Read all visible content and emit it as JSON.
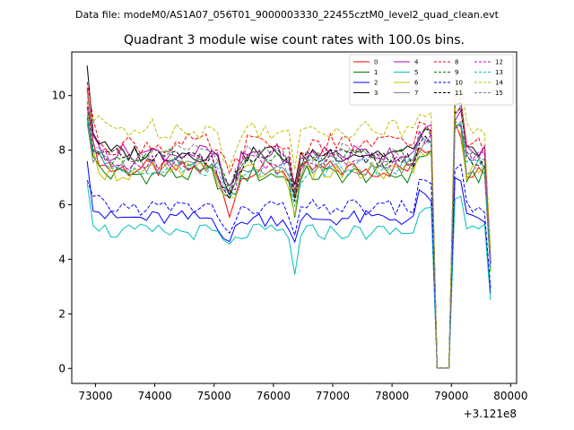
{
  "figure": {
    "suptitle": "Data file: modeM0/AS1A07_056T01_9000003330_22455cztM0_level2_quad_clean.evt",
    "title": "Quadrant 3 module wise count rates with 100.0s bins.",
    "x_offset_label": "+3.121e8"
  },
  "chart_data": {
    "type": "line",
    "title": "Quadrant 3 module wise count rates with 100.0s bins.",
    "xlabel": "",
    "ylabel": "",
    "x_offset": "+3.121e8",
    "xlim": [
      72600,
      80100
    ],
    "ylim": [
      -0.55,
      11.6
    ],
    "xticks": [
      73000,
      74000,
      75000,
      76000,
      77000,
      78000,
      79000,
      80000
    ],
    "xtick_labels": [
      "73000",
      "74000",
      "75000",
      "76000",
      "77000",
      "78000",
      "79000",
      "80000"
    ],
    "yticks": [
      0,
      2,
      4,
      6,
      8,
      10
    ],
    "ytick_labels": [
      "0",
      "2",
      "4",
      "6",
      "8",
      "10"
    ],
    "grid": false,
    "legend_position": "top-right",
    "legend_columns": 4,
    "x_start": 72860,
    "x_step": 100,
    "gap_start": 78760,
    "gap_end": 78960,
    "x_end": 79660,
    "series": [
      {
        "name": "0",
        "color": "#ff0000",
        "dashed": false,
        "base": 7.3,
        "start": 10.3,
        "amp": 0.35,
        "dip75": 1.5,
        "dip76": 1.0
      },
      {
        "name": "1",
        "color": "#008000",
        "dashed": false,
        "base": 7.1,
        "start": 9.2,
        "amp": 0.35,
        "dip75": 0.9,
        "dip76": 1.3
      },
      {
        "name": "2",
        "color": "#0000ff",
        "dashed": false,
        "base": 5.5,
        "start": 7.6,
        "amp": 0.3,
        "dip75": 0.8,
        "dip76": 1.0
      },
      {
        "name": "3",
        "color": "#000000",
        "dashed": false,
        "base": 7.9,
        "start": 11.1,
        "amp": 0.35,
        "dip75": 1.3,
        "dip76": 1.3
      },
      {
        "name": "4",
        "color": "#c000c0",
        "dashed": false,
        "base": 7.9,
        "start": 9.6,
        "amp": 0.35,
        "dip75": 1.4,
        "dip76": 1.6
      },
      {
        "name": "5",
        "color": "#00bfbf",
        "dashed": false,
        "base": 5.0,
        "start": 6.8,
        "amp": 0.3,
        "dip75": 0.6,
        "dip76": 1.4
      },
      {
        "name": "6",
        "color": "#bfbf00",
        "dashed": false,
        "base": 7.2,
        "start": 9.5,
        "amp": 0.4,
        "dip75": 1.0,
        "dip76": 1.4
      },
      {
        "name": "7",
        "color": "#808080",
        "dashed": false,
        "base": 7.4,
        "start": 9.0,
        "amp": 0.3,
        "dip75": 1.2,
        "dip76": 1.3
      },
      {
        "name": "8",
        "color": "#ff0000",
        "dashed": true,
        "base": 8.2,
        "start": 10.5,
        "amp": 0.4,
        "dip75": 1.2,
        "dip76": 1.4
      },
      {
        "name": "9",
        "color": "#008000",
        "dashed": true,
        "base": 7.7,
        "start": 9.6,
        "amp": 0.35,
        "dip75": 1.1,
        "dip76": 1.4
      },
      {
        "name": "10",
        "color": "#0000ff",
        "dashed": true,
        "base": 5.9,
        "start": 6.9,
        "amp": 0.3,
        "dip75": 1.0,
        "dip76": 1.1
      },
      {
        "name": "11",
        "color": "#000000",
        "dashed": true,
        "base": 7.7,
        "start": 10.2,
        "amp": 0.35,
        "dip75": 1.3,
        "dip76": 1.4
      },
      {
        "name": "12",
        "color": "#c000c0",
        "dashed": true,
        "base": 7.6,
        "start": 9.8,
        "amp": 0.35,
        "dip75": 1.2,
        "dip76": 1.4
      },
      {
        "name": "13",
        "color": "#00bfbf",
        "dashed": true,
        "base": 7.4,
        "start": 9.3,
        "amp": 0.35,
        "dip75": 1.2,
        "dip76": 1.3
      },
      {
        "name": "14",
        "color": "#bfbf00",
        "dashed": true,
        "base": 8.8,
        "start": 9.8,
        "amp": 0.4,
        "dip75": 1.5,
        "dip76": 1.6
      },
      {
        "name": "15",
        "color": "#808080",
        "dashed": true,
        "base": 7.9,
        "start": 10.2,
        "amp": 0.35,
        "dip75": 1.3,
        "dip76": 1.4
      }
    ]
  }
}
